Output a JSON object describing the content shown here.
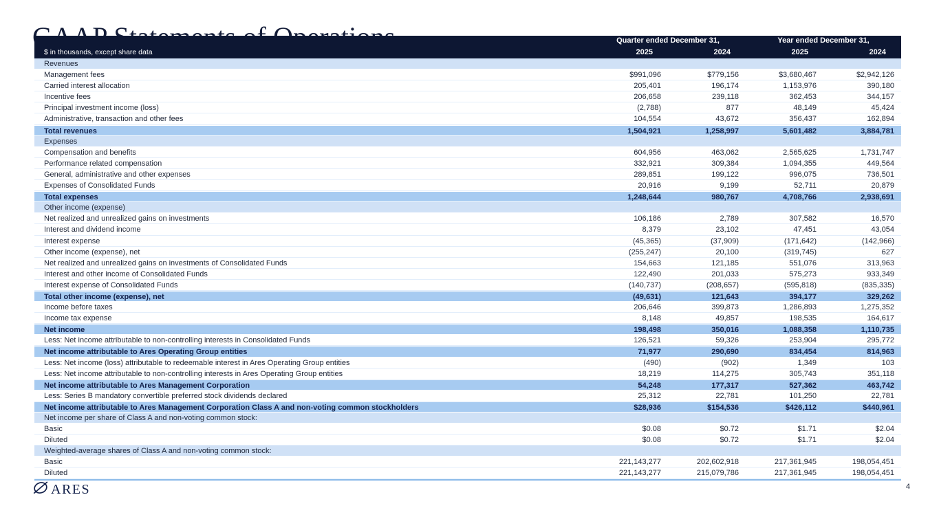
{
  "page": {
    "title": "GAAP Statements of Operations",
    "page_number": "4",
    "logo_text": "ARES"
  },
  "colors": {
    "header_bg": "#0d1733",
    "header_text": "#ffffff",
    "section_bg": "#d0e1f6",
    "total_bg": "#a7cbf1",
    "data_bg": "#ffffff",
    "row_divider": "#e3eefb",
    "text": "#20283a",
    "navy": "#12204a",
    "bottom_rule": "#8cbbe9",
    "title_color": "#131c38"
  },
  "table": {
    "units_note": "$ in thousands, except share data",
    "col_groups": [
      "Quarter ended December 31,",
      "Year ended December 31,"
    ],
    "col_years": [
      "2025",
      "2024",
      "2025",
      "2024"
    ],
    "rows": [
      {
        "label": "Revenues",
        "type": "section",
        "values": [
          "",
          "",
          "",
          ""
        ]
      },
      {
        "label": "Management fees",
        "type": "data",
        "values": [
          "$991,096",
          "$779,156",
          "$3,680,467",
          "$2,942,126"
        ]
      },
      {
        "label": "Carried interest allocation",
        "type": "data",
        "values": [
          "205,401",
          "196,174",
          "1,153,976",
          "390,180"
        ]
      },
      {
        "label": "Incentive fees",
        "type": "data",
        "values": [
          "206,658",
          "239,118",
          "362,453",
          "344,157"
        ]
      },
      {
        "label": "Principal investment income (loss)",
        "type": "data",
        "values": [
          "(2,788)",
          "877",
          "48,149",
          "45,424"
        ]
      },
      {
        "label": "Administrative, transaction and other fees",
        "type": "data",
        "values": [
          "104,554",
          "43,672",
          "356,437",
          "162,894"
        ]
      },
      {
        "label": "Total revenues",
        "type": "total",
        "values": [
          "1,504,921",
          "1,258,997",
          "5,601,482",
          "3,884,781"
        ]
      },
      {
        "label": "Expenses",
        "type": "section",
        "values": [
          "",
          "",
          "",
          ""
        ]
      },
      {
        "label": "Compensation and benefits",
        "type": "data",
        "values": [
          "604,956",
          "463,062",
          "2,565,625",
          "1,731,747"
        ]
      },
      {
        "label": "Performance related compensation",
        "type": "data",
        "values": [
          "332,921",
          "309,384",
          "1,094,355",
          "449,564"
        ]
      },
      {
        "label": "General, administrative and other expenses",
        "type": "data",
        "values": [
          "289,851",
          "199,122",
          "996,075",
          "736,501"
        ]
      },
      {
        "label": "Expenses of Consolidated Funds",
        "type": "data",
        "values": [
          "20,916",
          "9,199",
          "52,711",
          "20,879"
        ]
      },
      {
        "label": "Total expenses",
        "type": "total",
        "values": [
          "1,248,644",
          "980,767",
          "4,708,766",
          "2,938,691"
        ]
      },
      {
        "label": "Other income (expense)",
        "type": "section",
        "values": [
          "",
          "",
          "",
          ""
        ]
      },
      {
        "label": "Net realized and unrealized gains on investments",
        "type": "data",
        "values": [
          "106,186",
          "2,789",
          "307,582",
          "16,570"
        ]
      },
      {
        "label": "Interest and dividend income",
        "type": "data",
        "values": [
          "8,379",
          "23,102",
          "47,451",
          "43,054"
        ]
      },
      {
        "label": "Interest expense",
        "type": "data",
        "values": [
          "(45,365)",
          "(37,909)",
          "(171,642)",
          "(142,966)"
        ]
      },
      {
        "label": "Other income (expense), net",
        "type": "data",
        "values": [
          "(255,247)",
          "20,100",
          "(319,745)",
          "627"
        ]
      },
      {
        "label": "Net realized and unrealized gains on investments of Consolidated Funds",
        "type": "data",
        "values": [
          "154,663",
          "121,185",
          "551,076",
          "313,963"
        ]
      },
      {
        "label": "Interest and other income of Consolidated Funds",
        "type": "data",
        "values": [
          "122,490",
          "201,033",
          "575,273",
          "933,349"
        ]
      },
      {
        "label": "Interest expense of Consolidated Funds",
        "type": "data",
        "values": [
          "(140,737)",
          "(208,657)",
          "(595,818)",
          "(835,335)"
        ]
      },
      {
        "label": "Total other income (expense), net",
        "type": "total",
        "values": [
          "(49,631)",
          "121,643",
          "394,177",
          "329,262"
        ]
      },
      {
        "label": "Income before taxes",
        "type": "data",
        "values": [
          "206,646",
          "399,873",
          "1,286,893",
          "1,275,352"
        ]
      },
      {
        "label": "Income tax expense",
        "type": "data",
        "values": [
          "8,148",
          "49,857",
          "198,535",
          "164,617"
        ]
      },
      {
        "label": "Net income",
        "type": "total",
        "values": [
          "198,498",
          "350,016",
          "1,088,358",
          "1,110,735"
        ]
      },
      {
        "label": "Less: Net income attributable to non-controlling interests in Consolidated Funds",
        "type": "data",
        "values": [
          "126,521",
          "59,326",
          "253,904",
          "295,772"
        ]
      },
      {
        "label": "Net income attributable to Ares Operating Group entities",
        "type": "total",
        "values": [
          "71,977",
          "290,690",
          "834,454",
          "814,963"
        ]
      },
      {
        "label": "Less: Net income (loss) attributable to redeemable interest in Ares Operating Group entities",
        "type": "data",
        "values": [
          "(490)",
          "(902)",
          "1,349",
          "103"
        ]
      },
      {
        "label": "Less: Net income attributable to non-controlling interests in Ares Operating Group entities",
        "type": "data",
        "values": [
          "18,219",
          "114,275",
          "305,743",
          "351,118"
        ]
      },
      {
        "label": "Net income attributable to Ares Management Corporation",
        "type": "total",
        "values": [
          "54,248",
          "177,317",
          "527,362",
          "463,742"
        ]
      },
      {
        "label": "Less: Series B mandatory convertible preferred stock dividends declared",
        "type": "data",
        "values": [
          "25,312",
          "22,781",
          "101,250",
          "22,781"
        ]
      },
      {
        "label": "Net income attributable to Ares Management Corporation Class A and non-voting common stockholders",
        "type": "total",
        "values": [
          "$28,936",
          "$154,536",
          "$426,112",
          "$440,961"
        ]
      },
      {
        "label": "Net income per share of Class A and non-voting common stock:",
        "type": "section",
        "values": [
          "",
          "",
          "",
          ""
        ]
      },
      {
        "label": "Basic",
        "type": "data",
        "values": [
          "$0.08",
          "$0.72",
          "$1.71",
          "$2.04"
        ]
      },
      {
        "label": "Diluted",
        "type": "data",
        "values": [
          "$0.08",
          "$0.72",
          "$1.71",
          "$2.04"
        ]
      },
      {
        "label": "Weighted-average shares of Class A and non-voting common stock:",
        "type": "section",
        "values": [
          "",
          "",
          "",
          ""
        ]
      },
      {
        "label": "Basic",
        "type": "data",
        "values": [
          "221,143,277",
          "202,602,918",
          "217,361,945",
          "198,054,451"
        ]
      },
      {
        "label": "Diluted",
        "type": "data",
        "values": [
          "221,143,277",
          "215,079,786",
          "217,361,945",
          "198,054,451"
        ]
      }
    ]
  }
}
